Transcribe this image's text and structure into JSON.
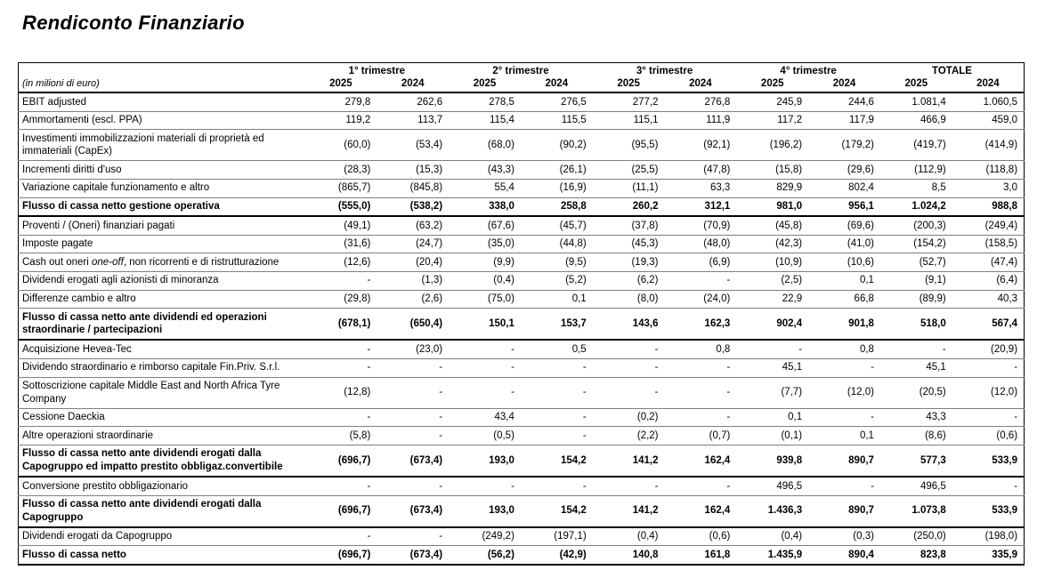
{
  "page": {
    "title": "Rendiconto Finanziario"
  },
  "table": {
    "unit_label": "(in milioni di euro)",
    "column_groups": [
      {
        "label": "1° trimestre",
        "years": [
          "2025",
          "2024"
        ]
      },
      {
        "label": "2° trimestre",
        "years": [
          "2025",
          "2024"
        ]
      },
      {
        "label": "3° trimestre",
        "years": [
          "2025",
          "2024"
        ]
      },
      {
        "label": "4° trimestre",
        "years": [
          "2025",
          "2024"
        ]
      },
      {
        "label": "TOTALE",
        "years": [
          "2025",
          "2024"
        ]
      }
    ],
    "rows": [
      {
        "label": "EBIT adjusted",
        "bold": false,
        "values": [
          "279,8",
          "262,6",
          "278,5",
          "276,5",
          "277,2",
          "276,8",
          "245,9",
          "244,6",
          "1.081,4",
          "1.060,5"
        ]
      },
      {
        "label": "Ammortamenti (escl. PPA)",
        "bold": false,
        "values": [
          "119,2",
          "113,7",
          "115,4",
          "115,5",
          "115,1",
          "111,9",
          "117,2",
          "117,9",
          "466,9",
          "459,0"
        ]
      },
      {
        "label": "Investimenti immobilizzazioni materiali di proprietà ed immateriali (CapEx)",
        "bold": false,
        "values": [
          "(60,0)",
          "(53,4)",
          "(68,0)",
          "(90,2)",
          "(95,5)",
          "(92,1)",
          "(196,2)",
          "(179,2)",
          "(419,7)",
          "(414,9)"
        ]
      },
      {
        "label": "Incrementi diritti d'uso",
        "bold": false,
        "values": [
          "(28,3)",
          "(15,3)",
          "(43,3)",
          "(26,1)",
          "(25,5)",
          "(47,8)",
          "(15,8)",
          "(29,6)",
          "(112,9)",
          "(118,8)"
        ]
      },
      {
        "label": "Variazione capitale funzionamento e altro",
        "bold": false,
        "values": [
          "(865,7)",
          "(845,8)",
          "55,4",
          "(16,9)",
          "(11,1)",
          "63,3",
          "829,9",
          "802,4",
          "8,5",
          "3,0"
        ]
      },
      {
        "label": "Flusso di cassa netto gestione operativa",
        "bold": true,
        "values": [
          "(555,0)",
          "(538,2)",
          "338,0",
          "258,8",
          "260,2",
          "312,1",
          "981,0",
          "956,1",
          "1.024,2",
          "988,8"
        ]
      },
      {
        "label": "Proventi / (Oneri) finanziari pagati",
        "bold": false,
        "values": [
          "(49,1)",
          "(63,2)",
          "(67,6)",
          "(45,7)",
          "(37,8)",
          "(70,9)",
          "(45,8)",
          "(69,6)",
          "(200,3)",
          "(249,4)"
        ]
      },
      {
        "label": "Imposte pagate",
        "bold": false,
        "values": [
          "(31,6)",
          "(24,7)",
          "(35,0)",
          "(44,8)",
          "(45,3)",
          "(48,0)",
          "(42,3)",
          "(41,0)",
          "(154,2)",
          "(158,5)"
        ]
      },
      {
        "label": "Cash out oneri one-off, non ricorrenti e di ristrutturazione",
        "label_em": "one-off",
        "bold": false,
        "values": [
          "(12,6)",
          "(20,4)",
          "(9,9)",
          "(9,5)",
          "(19,3)",
          "(6,9)",
          "(10,9)",
          "(10,6)",
          "(52,7)",
          "(47,4)"
        ]
      },
      {
        "label": "Dividendi erogati agli azionisti di minoranza",
        "bold": false,
        "values": [
          "-",
          "(1,3)",
          "(0,4)",
          "(5,2)",
          "(6,2)",
          "-",
          "(2,5)",
          "0,1",
          "(9,1)",
          "(6,4)"
        ]
      },
      {
        "label": "Differenze cambio e altro",
        "bold": false,
        "values": [
          "(29,8)",
          "(2,6)",
          "(75,0)",
          "0,1",
          "(8,0)",
          "(24,0)",
          "22,9",
          "66,8",
          "(89,9)",
          "40,3"
        ]
      },
      {
        "label": "Flusso di cassa netto ante dividendi ed operazioni straordinarie / partecipazioni",
        "bold": true,
        "values": [
          "(678,1)",
          "(650,4)",
          "150,1",
          "153,7",
          "143,6",
          "162,3",
          "902,4",
          "901,8",
          "518,0",
          "567,4"
        ]
      },
      {
        "label": "Acquisizione Hevea-Tec",
        "bold": false,
        "values": [
          "-",
          "(23,0)",
          "-",
          "0,5",
          "-",
          "0,8",
          "-",
          "0,8",
          "-",
          "(20,9)"
        ]
      },
      {
        "label": "Dividendo straordinario e rimborso capitale Fin.Priv. S.r.l.",
        "bold": false,
        "values": [
          "-",
          "-",
          "-",
          "-",
          "-",
          "-",
          "45,1",
          "-",
          "45,1",
          "-"
        ]
      },
      {
        "label": "Sottoscrizione capitale Middle East and North Africa Tyre Company",
        "bold": false,
        "values": [
          "(12,8)",
          "-",
          "-",
          "-",
          "-",
          "-",
          "(7,7)",
          "(12,0)",
          "(20,5)",
          "(12,0)"
        ]
      },
      {
        "label": "Cessione Daeckia",
        "bold": false,
        "values": [
          "-",
          "-",
          "43,4",
          "-",
          "(0,2)",
          "-",
          "0,1",
          "-",
          "43,3",
          "-"
        ]
      },
      {
        "label": "Altre operazioni straordinarie",
        "bold": false,
        "values": [
          "(5,8)",
          "-",
          "(0,5)",
          "-",
          "(2,2)",
          "(0,7)",
          "(0,1)",
          "0,1",
          "(8,6)",
          "(0,6)"
        ]
      },
      {
        "label": "Flusso di cassa netto ante dividendi erogati dalla Capogruppo ed impatto prestito obbligaz.convertibile",
        "bold": true,
        "values": [
          "(696,7)",
          "(673,4)",
          "193,0",
          "154,2",
          "141,2",
          "162,4",
          "939,8",
          "890,7",
          "577,3",
          "533,9"
        ]
      },
      {
        "label": "Conversione prestito obbligazionario",
        "bold": false,
        "values": [
          "-",
          "-",
          "-",
          "-",
          "-",
          "-",
          "496,5",
          "-",
          "496,5",
          "-"
        ]
      },
      {
        "label": "Flusso di cassa netto ante dividendi erogati dalla Capogruppo",
        "bold": true,
        "values": [
          "(696,7)",
          "(673,4)",
          "193,0",
          "154,2",
          "141,2",
          "162,4",
          "1.436,3",
          "890,7",
          "1.073,8",
          "533,9"
        ]
      },
      {
        "label": "Dividendi erogati da Capogruppo",
        "bold": false,
        "values": [
          "-",
          "-",
          "(249,2)",
          "(197,1)",
          "(0,4)",
          "(0,6)",
          "(0,4)",
          "(0,3)",
          "(250,0)",
          "(198,0)"
        ]
      },
      {
        "label": "Flusso di cassa netto",
        "bold": true,
        "values": [
          "(696,7)",
          "(673,4)",
          "(56,2)",
          "(42,9)",
          "140,8",
          "161,8",
          "1.435,9",
          "890,4",
          "823,8",
          "335,9"
        ]
      }
    ]
  }
}
